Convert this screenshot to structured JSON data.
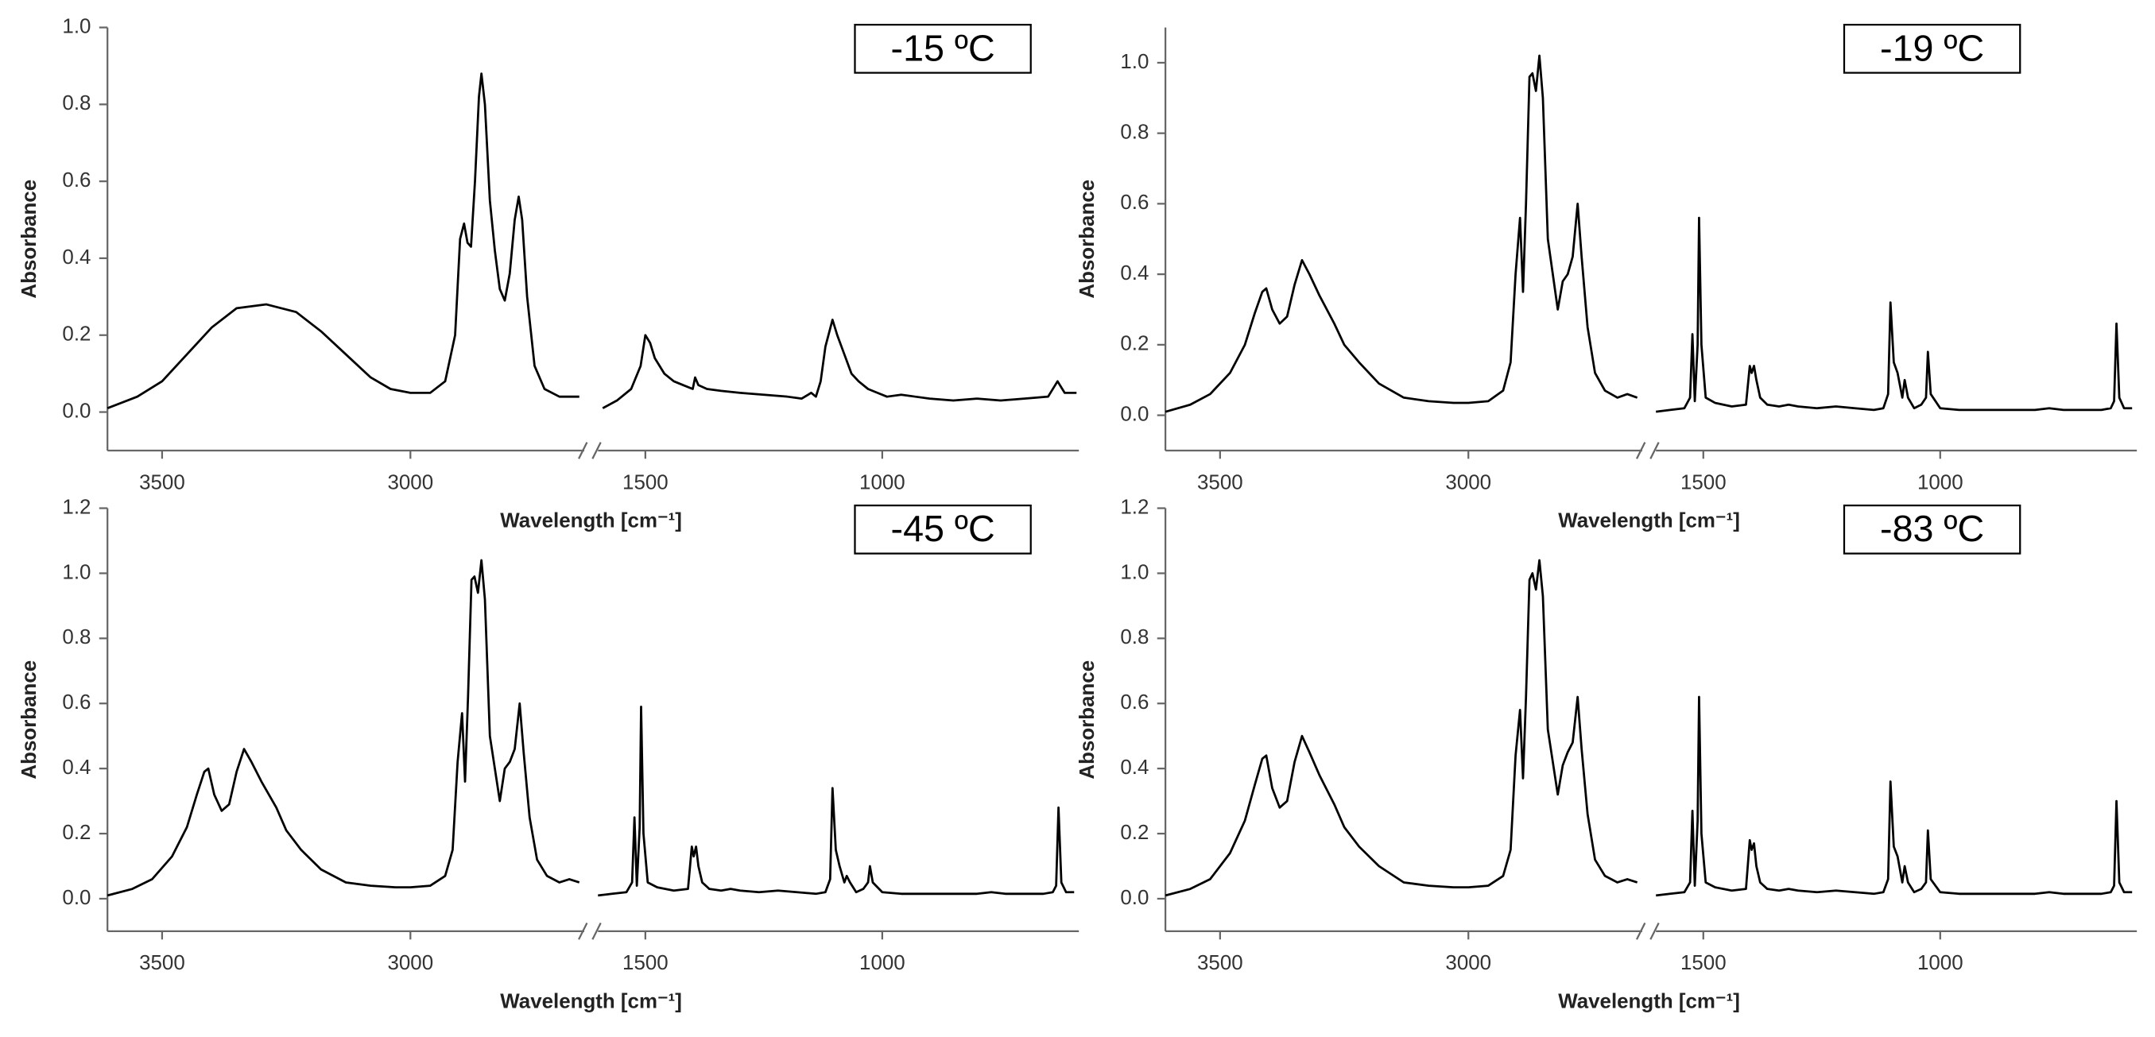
{
  "chart_data": [
    {
      "type": "line",
      "label": "-15 ºC",
      "x_label": "Wavelength [cm⁻¹]",
      "y_label": "Absorbance",
      "color": "#000000",
      "ylim": [
        -0.1,
        1.0
      ],
      "yticks": [
        {
          "value": 0,
          "label": "0.0"
        },
        {
          "value": 0.2,
          "label": "0.2"
        },
        {
          "value": 0.4,
          "label": "0.4"
        },
        {
          "value": 0.6,
          "label": "0.6"
        },
        {
          "value": 0.8,
          "label": "0.8"
        },
        {
          "value": 1.0,
          "label": "1.0"
        }
      ],
      "x_segments": [
        {
          "xlim": [
            3610,
            2650
          ],
          "xticks": [
            3500,
            3000
          ],
          "x": [
            3610,
            3550,
            3500,
            3450,
            3400,
            3350,
            3290,
            3230,
            3180,
            3130,
            3080,
            3040,
            3000,
            2960,
            2930,
            2910,
            2900,
            2892,
            2885,
            2878,
            2870,
            2862,
            2857,
            2850,
            2840,
            2830,
            2820,
            2810,
            2800,
            2790,
            2782,
            2775,
            2765,
            2750,
            2730,
            2700,
            2660
          ],
          "values": [
            0.01,
            0.04,
            0.08,
            0.15,
            0.22,
            0.27,
            0.28,
            0.26,
            0.21,
            0.15,
            0.09,
            0.06,
            0.05,
            0.05,
            0.08,
            0.2,
            0.45,
            0.49,
            0.44,
            0.43,
            0.6,
            0.82,
            0.88,
            0.8,
            0.55,
            0.42,
            0.32,
            0.29,
            0.36,
            0.5,
            0.56,
            0.5,
            0.3,
            0.12,
            0.06,
            0.04,
            0.04
          ]
        },
        {
          "xlim": [
            1600,
            585
          ],
          "xticks": [
            1500,
            1000
          ],
          "x": [
            1590,
            1560,
            1530,
            1510,
            1500,
            1490,
            1480,
            1460,
            1440,
            1420,
            1400,
            1395,
            1388,
            1370,
            1340,
            1300,
            1250,
            1200,
            1170,
            1150,
            1140,
            1130,
            1120,
            1105,
            1095,
            1080,
            1065,
            1050,
            1030,
            1010,
            990,
            960,
            930,
            900,
            850,
            800,
            750,
            700,
            650,
            630,
            615,
            590
          ],
          "values": [
            0.01,
            0.03,
            0.06,
            0.12,
            0.2,
            0.18,
            0.14,
            0.1,
            0.08,
            0.07,
            0.06,
            0.09,
            0.07,
            0.06,
            0.055,
            0.05,
            0.045,
            0.04,
            0.035,
            0.05,
            0.04,
            0.08,
            0.17,
            0.24,
            0.2,
            0.15,
            0.1,
            0.08,
            0.06,
            0.05,
            0.04,
            0.045,
            0.04,
            0.035,
            0.03,
            0.035,
            0.03,
            0.035,
            0.04,
            0.08,
            0.05,
            0.05
          ]
        }
      ]
    },
    {
      "type": "line",
      "label": "-19 ºC",
      "x_label": "Wavelength [cm⁻¹]",
      "y_label": "Absorbance",
      "color": "#000000",
      "ylim": [
        -0.1,
        1.1
      ],
      "yticks": [
        {
          "value": 0,
          "label": "0.0"
        },
        {
          "value": 0.2,
          "label": "0.2"
        },
        {
          "value": 0.4,
          "label": "0.4"
        },
        {
          "value": 0.6,
          "label": "0.6"
        },
        {
          "value": 0.8,
          "label": "0.8"
        },
        {
          "value": 1.0,
          "label": "1.0"
        }
      ],
      "x_segments": [
        {
          "xlim": [
            3610,
            2650
          ],
          "xticks": [
            3500,
            3000
          ],
          "x": [
            3610,
            3560,
            3520,
            3480,
            3450,
            3430,
            3415,
            3407,
            3395,
            3380,
            3365,
            3350,
            3335,
            3320,
            3300,
            3270,
            3250,
            3220,
            3180,
            3130,
            3080,
            3030,
            3000,
            2960,
            2930,
            2915,
            2905,
            2896,
            2890,
            2884,
            2877,
            2871,
            2864,
            2857,
            2850,
            2840,
            2830,
            2820,
            2810,
            2800,
            2790,
            2780,
            2772,
            2760,
            2745,
            2725,
            2700,
            2680,
            2660
          ],
          "values": [
            0.01,
            0.03,
            0.06,
            0.12,
            0.2,
            0.29,
            0.35,
            0.36,
            0.3,
            0.26,
            0.28,
            0.37,
            0.44,
            0.4,
            0.34,
            0.26,
            0.2,
            0.15,
            0.09,
            0.05,
            0.04,
            0.035,
            0.035,
            0.04,
            0.07,
            0.15,
            0.4,
            0.56,
            0.35,
            0.6,
            0.96,
            0.97,
            0.92,
            1.02,
            0.9,
            0.5,
            0.4,
            0.3,
            0.38,
            0.4,
            0.45,
            0.6,
            0.45,
            0.25,
            0.12,
            0.07,
            0.05,
            0.06,
            0.05
          ]
        },
        {
          "xlim": [
            1600,
            585
          ],
          "xticks": [
            1500,
            1000
          ],
          "x": [
            1600,
            1570,
            1540,
            1528,
            1523,
            1518,
            1512,
            1509,
            1504,
            1495,
            1475,
            1440,
            1410,
            1402,
            1398,
            1393,
            1388,
            1380,
            1365,
            1340,
            1320,
            1300,
            1260,
            1220,
            1180,
            1140,
            1120,
            1110,
            1105,
            1098,
            1090,
            1080,
            1075,
            1068,
            1055,
            1040,
            1030,
            1026,
            1020,
            1000,
            960,
            920,
            880,
            850,
            830,
            800,
            770,
            740,
            700,
            660,
            640,
            633,
            628,
            622,
            612,
            595
          ],
          "values": [
            0.01,
            0.015,
            0.02,
            0.05,
            0.23,
            0.04,
            0.2,
            0.56,
            0.2,
            0.05,
            0.035,
            0.025,
            0.03,
            0.14,
            0.12,
            0.14,
            0.1,
            0.05,
            0.03,
            0.025,
            0.03,
            0.025,
            0.02,
            0.025,
            0.02,
            0.015,
            0.02,
            0.06,
            0.32,
            0.15,
            0.12,
            0.05,
            0.1,
            0.05,
            0.02,
            0.03,
            0.05,
            0.18,
            0.06,
            0.02,
            0.015,
            0.015,
            0.015,
            0.015,
            0.015,
            0.015,
            0.02,
            0.015,
            0.015,
            0.015,
            0.02,
            0.04,
            0.26,
            0.05,
            0.02,
            0.02
          ]
        }
      ]
    },
    {
      "type": "line",
      "label": "-45 ºC",
      "x_label": "Wavelength [cm⁻¹]",
      "y_label": "Absorbance",
      "color": "#000000",
      "ylim": [
        -0.1,
        1.2
      ],
      "yticks": [
        {
          "value": 0,
          "label": "0.0"
        },
        {
          "value": 0.2,
          "label": "0.2"
        },
        {
          "value": 0.4,
          "label": "0.4"
        },
        {
          "value": 0.6,
          "label": "0.6"
        },
        {
          "value": 0.8,
          "label": "0.8"
        },
        {
          "value": 1.0,
          "label": "1.0"
        },
        {
          "value": 1.2,
          "label": "1.2"
        }
      ],
      "x_segments": [
        {
          "xlim": [
            3610,
            2650
          ],
          "xticks": [
            3500,
            3000
          ],
          "x": [
            3610,
            3560,
            3520,
            3480,
            3450,
            3430,
            3415,
            3407,
            3395,
            3380,
            3365,
            3350,
            3335,
            3320,
            3300,
            3270,
            3250,
            3220,
            3180,
            3130,
            3080,
            3030,
            3000,
            2960,
            2930,
            2915,
            2905,
            2896,
            2890,
            2884,
            2877,
            2871,
            2864,
            2857,
            2850,
            2840,
            2830,
            2820,
            2810,
            2800,
            2790,
            2780,
            2772,
            2760,
            2745,
            2725,
            2700,
            2680,
            2660
          ],
          "values": [
            0.01,
            0.03,
            0.06,
            0.13,
            0.22,
            0.32,
            0.39,
            0.4,
            0.32,
            0.27,
            0.29,
            0.39,
            0.46,
            0.42,
            0.36,
            0.28,
            0.21,
            0.15,
            0.09,
            0.05,
            0.04,
            0.035,
            0.035,
            0.04,
            0.07,
            0.15,
            0.42,
            0.57,
            0.36,
            0.62,
            0.98,
            0.99,
            0.94,
            1.04,
            0.92,
            0.5,
            0.4,
            0.3,
            0.4,
            0.42,
            0.46,
            0.6,
            0.45,
            0.25,
            0.12,
            0.07,
            0.05,
            0.06,
            0.05
          ]
        },
        {
          "xlim": [
            1600,
            585
          ],
          "xticks": [
            1500,
            1000
          ],
          "x": [
            1600,
            1570,
            1540,
            1528,
            1523,
            1518,
            1512,
            1509,
            1504,
            1495,
            1475,
            1440,
            1410,
            1402,
            1398,
            1393,
            1388,
            1380,
            1365,
            1340,
            1320,
            1300,
            1260,
            1220,
            1180,
            1140,
            1120,
            1110,
            1105,
            1098,
            1090,
            1080,
            1075,
            1068,
            1055,
            1040,
            1030,
            1026,
            1020,
            1000,
            960,
            920,
            880,
            850,
            830,
            800,
            770,
            740,
            700,
            660,
            640,
            633,
            628,
            622,
            612,
            595
          ],
          "values": [
            0.01,
            0.015,
            0.02,
            0.05,
            0.25,
            0.04,
            0.22,
            0.59,
            0.2,
            0.05,
            0.035,
            0.025,
            0.03,
            0.16,
            0.13,
            0.16,
            0.1,
            0.05,
            0.03,
            0.025,
            0.03,
            0.025,
            0.02,
            0.025,
            0.02,
            0.015,
            0.02,
            0.06,
            0.34,
            0.15,
            0.1,
            0.05,
            0.07,
            0.05,
            0.02,
            0.03,
            0.05,
            0.1,
            0.05,
            0.02,
            0.015,
            0.015,
            0.015,
            0.015,
            0.015,
            0.015,
            0.02,
            0.015,
            0.015,
            0.015,
            0.02,
            0.04,
            0.28,
            0.05,
            0.02,
            0.02
          ]
        }
      ]
    },
    {
      "type": "line",
      "label": "-83 ºC",
      "x_label": "Wavelength [cm⁻¹]",
      "y_label": "Absorbance",
      "color": "#000000",
      "ylim": [
        -0.1,
        1.2
      ],
      "yticks": [
        {
          "value": 0,
          "label": "0.0"
        },
        {
          "value": 0.2,
          "label": "0.2"
        },
        {
          "value": 0.4,
          "label": "0.4"
        },
        {
          "value": 0.6,
          "label": "0.6"
        },
        {
          "value": 0.8,
          "label": "0.8"
        },
        {
          "value": 1.0,
          "label": "1.0"
        },
        {
          "value": 1.2,
          "label": "1.2"
        }
      ],
      "x_segments": [
        {
          "xlim": [
            3610,
            2650
          ],
          "xticks": [
            3500,
            3000
          ],
          "x": [
            3610,
            3560,
            3520,
            3480,
            3450,
            3430,
            3415,
            3407,
            3395,
            3380,
            3365,
            3350,
            3335,
            3320,
            3300,
            3270,
            3250,
            3220,
            3180,
            3130,
            3080,
            3030,
            3000,
            2960,
            2930,
            2915,
            2905,
            2896,
            2890,
            2884,
            2877,
            2871,
            2864,
            2857,
            2850,
            2840,
            2830,
            2820,
            2810,
            2800,
            2790,
            2780,
            2772,
            2760,
            2745,
            2725,
            2700,
            2680,
            2660
          ],
          "values": [
            0.01,
            0.03,
            0.06,
            0.14,
            0.24,
            0.35,
            0.43,
            0.44,
            0.34,
            0.28,
            0.3,
            0.42,
            0.5,
            0.45,
            0.38,
            0.29,
            0.22,
            0.16,
            0.1,
            0.05,
            0.04,
            0.035,
            0.035,
            0.04,
            0.07,
            0.15,
            0.44,
            0.58,
            0.37,
            0.62,
            0.98,
            1.0,
            0.95,
            1.04,
            0.93,
            0.52,
            0.42,
            0.32,
            0.41,
            0.45,
            0.48,
            0.62,
            0.46,
            0.26,
            0.12,
            0.07,
            0.05,
            0.06,
            0.05
          ]
        },
        {
          "xlim": [
            1600,
            585
          ],
          "xticks": [
            1500,
            1000
          ],
          "x": [
            1600,
            1570,
            1540,
            1528,
            1523,
            1518,
            1512,
            1509,
            1504,
            1495,
            1475,
            1440,
            1410,
            1402,
            1398,
            1393,
            1388,
            1380,
            1365,
            1340,
            1320,
            1300,
            1260,
            1220,
            1180,
            1140,
            1120,
            1110,
            1105,
            1098,
            1090,
            1080,
            1075,
            1068,
            1055,
            1040,
            1030,
            1026,
            1020,
            1000,
            960,
            920,
            880,
            850,
            830,
            800,
            770,
            740,
            700,
            660,
            640,
            633,
            628,
            622,
            612,
            595
          ],
          "values": [
            0.01,
            0.015,
            0.02,
            0.05,
            0.27,
            0.04,
            0.24,
            0.62,
            0.2,
            0.05,
            0.035,
            0.025,
            0.03,
            0.18,
            0.15,
            0.17,
            0.1,
            0.05,
            0.03,
            0.025,
            0.03,
            0.025,
            0.02,
            0.025,
            0.02,
            0.015,
            0.02,
            0.06,
            0.36,
            0.16,
            0.13,
            0.05,
            0.1,
            0.05,
            0.02,
            0.03,
            0.05,
            0.21,
            0.06,
            0.02,
            0.015,
            0.015,
            0.015,
            0.015,
            0.015,
            0.015,
            0.02,
            0.015,
            0.015,
            0.015,
            0.02,
            0.04,
            0.3,
            0.05,
            0.02,
            0.02
          ]
        }
      ]
    }
  ]
}
